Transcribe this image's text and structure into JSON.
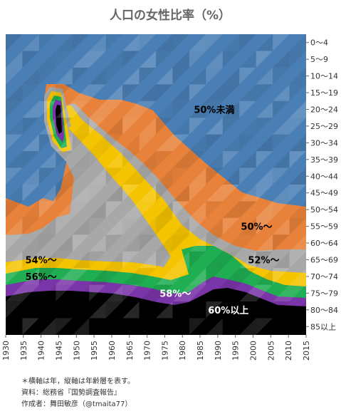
{
  "chart_data": {
    "type": "heatmap",
    "title": "人口の女性比率（%）",
    "x_ticks": [
      "1930",
      "1935",
      "1940",
      "1945",
      "1950",
      "1955",
      "1960",
      "1965",
      "1970",
      "1975",
      "1980",
      "1985",
      "1990",
      "1995",
      "2000",
      "2005",
      "2010",
      "2015"
    ],
    "y_ticks": [
      "0〜4",
      "5〜9",
      "10〜14",
      "15〜19",
      "20〜24",
      "25〜29",
      "30〜34",
      "35〜39",
      "40〜44",
      "45〜49",
      "50〜54",
      "55〜59",
      "60〜64",
      "65〜69",
      "70〜74",
      "75〜79",
      "80〜84",
      "85以上"
    ],
    "bands": [
      {
        "label": "50%未満",
        "color": "#4a7fb5"
      },
      {
        "label": "50%〜",
        "color": "#e8823a"
      },
      {
        "label": "52%〜",
        "color": "#a8a8a8"
      },
      {
        "label": "54%〜",
        "color": "#f5c400"
      },
      {
        "label": "56%〜",
        "color": "#1fae52"
      },
      {
        "label": "58%〜",
        "color": "#7a35a8"
      },
      {
        "label": "60%以上",
        "color": "#000000"
      }
    ],
    "annotations": [
      {
        "text": "50%未満",
        "x": 1989,
        "age": "20〜24",
        "color": "#000000"
      },
      {
        "text": "50%〜",
        "x": 2001,
        "age": "55〜59",
        "color": "#000000"
      },
      {
        "text": "52%〜",
        "x": 2003,
        "age": "65〜69",
        "color": "#000000"
      },
      {
        "text": "54%〜",
        "x": 1940,
        "age": "65〜69",
        "color": "#000000"
      },
      {
        "text": "56%〜",
        "x": 1940,
        "age": "70〜74",
        "color": "#000000"
      },
      {
        "text": "58%〜",
        "x": 1978,
        "age": "75〜79",
        "color": "#ffffff"
      },
      {
        "text": "60%以上",
        "x": 1993,
        "age": "80〜84",
        "color": "#ffffff"
      }
    ],
    "xlabel": "",
    "ylabel": ""
  },
  "notes": [
    "＊横軸は年，縦軸は年齢層を表す。",
    "資料：総務省『国勢調査報告』",
    "作成者：舞田敏彦（@tmaita77）"
  ]
}
